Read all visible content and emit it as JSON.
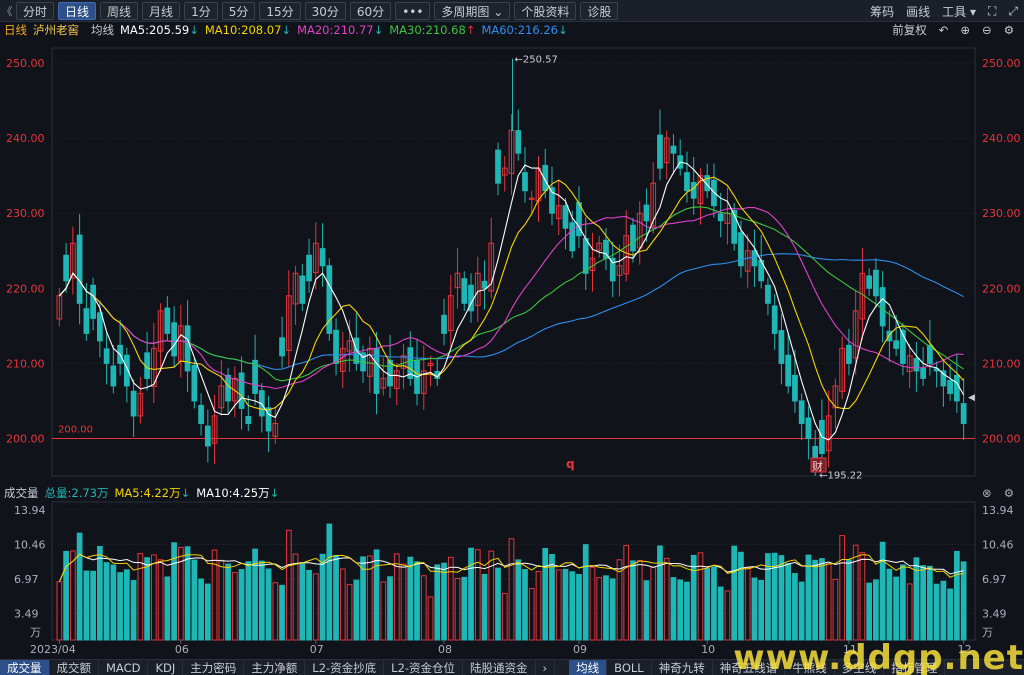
{
  "toolbar": {
    "back": "《",
    "periods": [
      "分时",
      "日线",
      "周线",
      "月线",
      "1分",
      "5分",
      "15分",
      "30分",
      "60分",
      "•••"
    ],
    "active_period": "日线",
    "multi_period": "多周期图",
    "company_info": "个股资料",
    "diagnose": "诊股",
    "chips": "筹码",
    "draw": "画线",
    "tools": "工具"
  },
  "info": {
    "period": "日线",
    "stock_name": "泸州老窖",
    "avg_line": "均线",
    "ma5": "MA5:205.59",
    "ma10": "MA10:208.07",
    "ma20": "MA20:210.77",
    "ma30": "MA30:210.68",
    "ma60": "MA60:216.26",
    "adjust": "前复权"
  },
  "colors": {
    "up": "#e6343c",
    "down": "#1fb6b6",
    "ma5": "#ffffff",
    "ma10": "#f5d400",
    "ma20": "#e040c8",
    "ma30": "#3cc43c",
    "ma60": "#2f8ef0"
  },
  "price_axis": {
    "ticks": [
      "250.00",
      "240.00",
      "230.00",
      "220.00",
      "210.00",
      "200.00"
    ],
    "min": 195,
    "max": 252
  },
  "annotations": {
    "high": "250.57",
    "low": "195.22",
    "line_label": "200.00",
    "marker_q": "q",
    "marker_cai": "财"
  },
  "volume": {
    "title": "成交量",
    "total": "总量:2.73万",
    "ma5": "MA5:4.22万",
    "ma10": "MA10:4.25万",
    "ticks": [
      "13.94",
      "10.46",
      "6.97",
      "3.49"
    ],
    "unit": "万",
    "max": 13.94
  },
  "x_axis": {
    "labels": [
      "2023/04",
      "06",
      "07",
      "08",
      "09",
      "10",
      "11",
      "12"
    ]
  },
  "tabs_left": [
    "成交量",
    "成交额",
    "MACD",
    "KDJ",
    "主力密码",
    "主力净额",
    "L2-资金抄底",
    "L2-资金仓位",
    "陆股通资金"
  ],
  "tabs_right": [
    "均线",
    "BOLL",
    "神奇九转",
    "神奇五线谱",
    "牛熊线",
    "多空线",
    "指标管理"
  ],
  "active_tab": "成交量",
  "active_tab_right": "均线",
  "watermark": "www.ddgp.net",
  "chart_data": {
    "type": "candlestick",
    "closes": [
      219,
      221,
      226,
      218,
      214,
      216,
      213,
      210,
      207,
      210,
      207,
      203,
      206,
      208,
      212,
      217,
      214,
      211,
      215,
      209,
      205,
      202,
      199,
      203,
      207,
      205,
      208,
      204,
      202,
      206,
      203,
      201,
      202,
      211,
      219,
      222,
      218,
      221,
      226,
      223,
      214,
      210,
      212,
      213,
      210,
      209,
      212,
      206,
      208,
      207,
      209,
      211,
      208,
      206,
      209,
      210,
      208,
      214,
      219,
      222,
      218,
      217,
      222,
      220,
      226,
      234,
      236,
      241,
      238,
      233,
      232,
      236,
      233,
      230,
      231,
      228,
      225,
      227,
      222,
      224,
      226,
      224,
      221,
      223,
      227,
      225,
      230,
      229,
      234,
      236,
      240,
      238,
      236,
      233,
      232,
      235,
      233,
      231,
      229,
      230,
      226,
      223,
      225,
      223,
      221,
      218,
      214,
      210,
      207,
      205,
      202,
      200,
      196,
      198,
      203,
      207,
      212,
      210,
      217,
      222,
      220,
      219,
      215,
      213,
      212,
      210,
      211,
      209,
      208,
      210,
      209,
      207,
      206,
      205,
      202
    ]
  }
}
